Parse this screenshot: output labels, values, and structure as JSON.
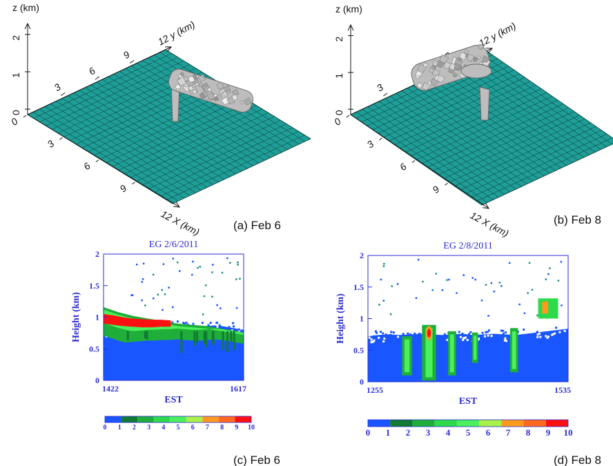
{
  "captions": {
    "a": "(a) Feb 6",
    "b": "(b) Feb 8",
    "c": "(c) Feb 6",
    "d": "(d) Feb 8"
  },
  "colors": {
    "grid_fill": "#1f9e98",
    "grid_line": "#0d4e4a",
    "cloud_fill": "#bdbdbd",
    "radar_axis_text": "#2b2bd6",
    "radar_background": "#1a56ff",
    "colorbar": [
      "#1a56ff",
      "#127a32",
      "#1fae3a",
      "#2ed94a",
      "#4bf05c",
      "#a8f04a",
      "#ff9a1f",
      "#ff6a1f",
      "#ff1010"
    ]
  },
  "chart_data": [
    {
      "type": "surface3d",
      "panel": "a",
      "x_axis": {
        "label": "X (km)",
        "ticks": [
          "0",
          "3",
          "6",
          "9",
          "12"
        ]
      },
      "y_axis": {
        "label": "y (km)",
        "ticks": [
          "3",
          "6",
          "9",
          "12"
        ]
      },
      "z_axis": {
        "label": "z (km)",
        "ticks": [
          "0",
          "1",
          "2"
        ]
      },
      "caption": "(a) Feb 6"
    },
    {
      "type": "surface3d",
      "panel": "b",
      "x_axis": {
        "label": "X (km)",
        "ticks": [
          "0",
          "3",
          "6",
          "9",
          "12"
        ]
      },
      "y_axis": {
        "label": "y (km)",
        "ticks": [
          "3",
          "6",
          "9",
          "12"
        ]
      },
      "z_axis": {
        "label": "z (km)",
        "ticks": [
          "0",
          "1",
          "2"
        ]
      },
      "caption": "(b) Feb 8"
    },
    {
      "type": "heatmap",
      "panel": "c",
      "title": "EG 2/6/2011",
      "xlabel": "EST",
      "ylabel": "Height (km)",
      "x_ticks": [
        "1422",
        "1617"
      ],
      "y_ticks": [
        "0",
        "0.5",
        "1",
        "1.5",
        "2"
      ],
      "ylim": [
        0,
        2
      ],
      "colorbar_ticks": [
        "0",
        "1",
        "2",
        "3",
        "4",
        "5",
        "6",
        "7",
        "8",
        "9",
        "10"
      ],
      "profile": {
        "background_top": [
          0.78,
          0.8,
          0.8,
          0.82,
          0.83,
          0.84,
          0.85,
          0.85,
          0.86,
          0.86,
          0.87,
          0.86,
          0.85,
          0.85,
          0.86,
          0.87,
          0.86,
          0.84,
          0.82,
          0.8
        ],
        "green_band_top": [
          1.16,
          1.12,
          1.08,
          1.05,
          1.02,
          1.0,
          0.98,
          0.96,
          0.93,
          0.92,
          0.9,
          0.89,
          0.88,
          0.87,
          0.86,
          0.84,
          0.82,
          0.8,
          0.78,
          0.76
        ],
        "red_core_top": [
          1.05,
          1.03,
          1.0,
          0.98,
          0.97,
          0.96,
          0.96,
          0.95
        ],
        "red_core_bottom": [
          0.9,
          0.88,
          0.86,
          0.85,
          0.84,
          0.84,
          0.85,
          0.85
        ],
        "red_core_x_fraction": [
          0.0,
          0.48
        ]
      },
      "caption": "(c) Feb 6"
    },
    {
      "type": "heatmap",
      "panel": "d",
      "title": "EG 2/8/2011",
      "xlabel": "EST",
      "ylabel": "Height (km)",
      "x_ticks": [
        "1255",
        "1535"
      ],
      "y_ticks": [
        "0",
        "0.5",
        "1",
        "1.5",
        "2"
      ],
      "ylim": [
        0,
        2
      ],
      "colorbar_ticks": [
        "0",
        "1",
        "2",
        "3",
        "4",
        "5",
        "6",
        "7",
        "8",
        "9",
        "10"
      ],
      "profile": {
        "background_top": [
          0.72,
          0.74,
          0.75,
          0.74,
          0.75,
          0.76,
          0.75,
          0.74,
          0.75,
          0.76,
          0.74,
          0.75,
          0.76,
          0.75,
          0.74,
          0.76,
          0.78,
          0.8,
          0.82,
          0.84
        ],
        "columns": [
          {
            "x_fraction": 0.17,
            "width": 0.05,
            "top": 0.72,
            "bottom": 0.1
          },
          {
            "x_fraction": 0.27,
            "width": 0.07,
            "top": 0.9,
            "bottom": 0.02,
            "core": [
              0.68,
              0.86
            ]
          },
          {
            "x_fraction": 0.4,
            "width": 0.04,
            "top": 0.8,
            "bottom": 0.1
          },
          {
            "x_fraction": 0.52,
            "width": 0.03,
            "top": 0.78,
            "bottom": 0.3
          },
          {
            "x_fraction": 0.71,
            "width": 0.04,
            "top": 0.85,
            "bottom": 0.15
          }
        ],
        "elevated_cell": {
          "x_fraction": 0.85,
          "low": 1.0,
          "high": 1.32
        }
      },
      "caption": "(d) Feb 8"
    }
  ]
}
